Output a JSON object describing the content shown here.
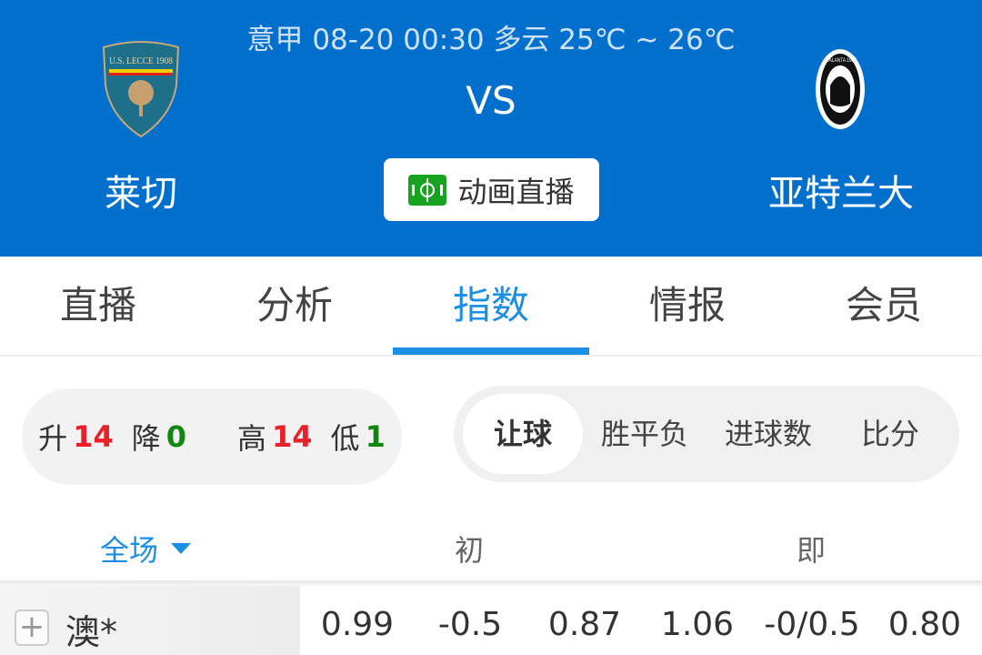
{
  "header": {
    "match_info": "意甲 08-20 00:30 多云 25℃ ~ 26℃",
    "vs": "VS",
    "home_team": "莱切",
    "away_team": "亚特兰大",
    "live_button": "动画直播",
    "home_crest_text": "U.S. LECCE 1908",
    "away_crest_text": "ATALANTA 1907"
  },
  "tabs": [
    {
      "label": "直播"
    },
    {
      "label": "分析"
    },
    {
      "label": "指数",
      "active": true
    },
    {
      "label": "情报"
    },
    {
      "label": "会员"
    }
  ],
  "stats": {
    "up_label": "升",
    "up": "14",
    "down_label": "降",
    "down": "0",
    "high_label": "高",
    "high": "14",
    "low_label": "低",
    "low": "1"
  },
  "odds_types": [
    {
      "label": "让球",
      "selected": true
    },
    {
      "label": "胜平负"
    },
    {
      "label": "进球数"
    },
    {
      "label": "比分"
    }
  ],
  "columns": {
    "period": "全场",
    "initial": "初",
    "live": "即"
  },
  "rows": [
    {
      "company": "澳*",
      "initial": [
        "0.99",
        "-0.5",
        "0.87"
      ],
      "live": [
        "1.06",
        "-0/0.5",
        "0.80"
      ]
    }
  ],
  "colors": {
    "header_bg": "#0070cc",
    "accent": "#1a8fe3",
    "up": "#e8202a",
    "down": "#10880f"
  }
}
